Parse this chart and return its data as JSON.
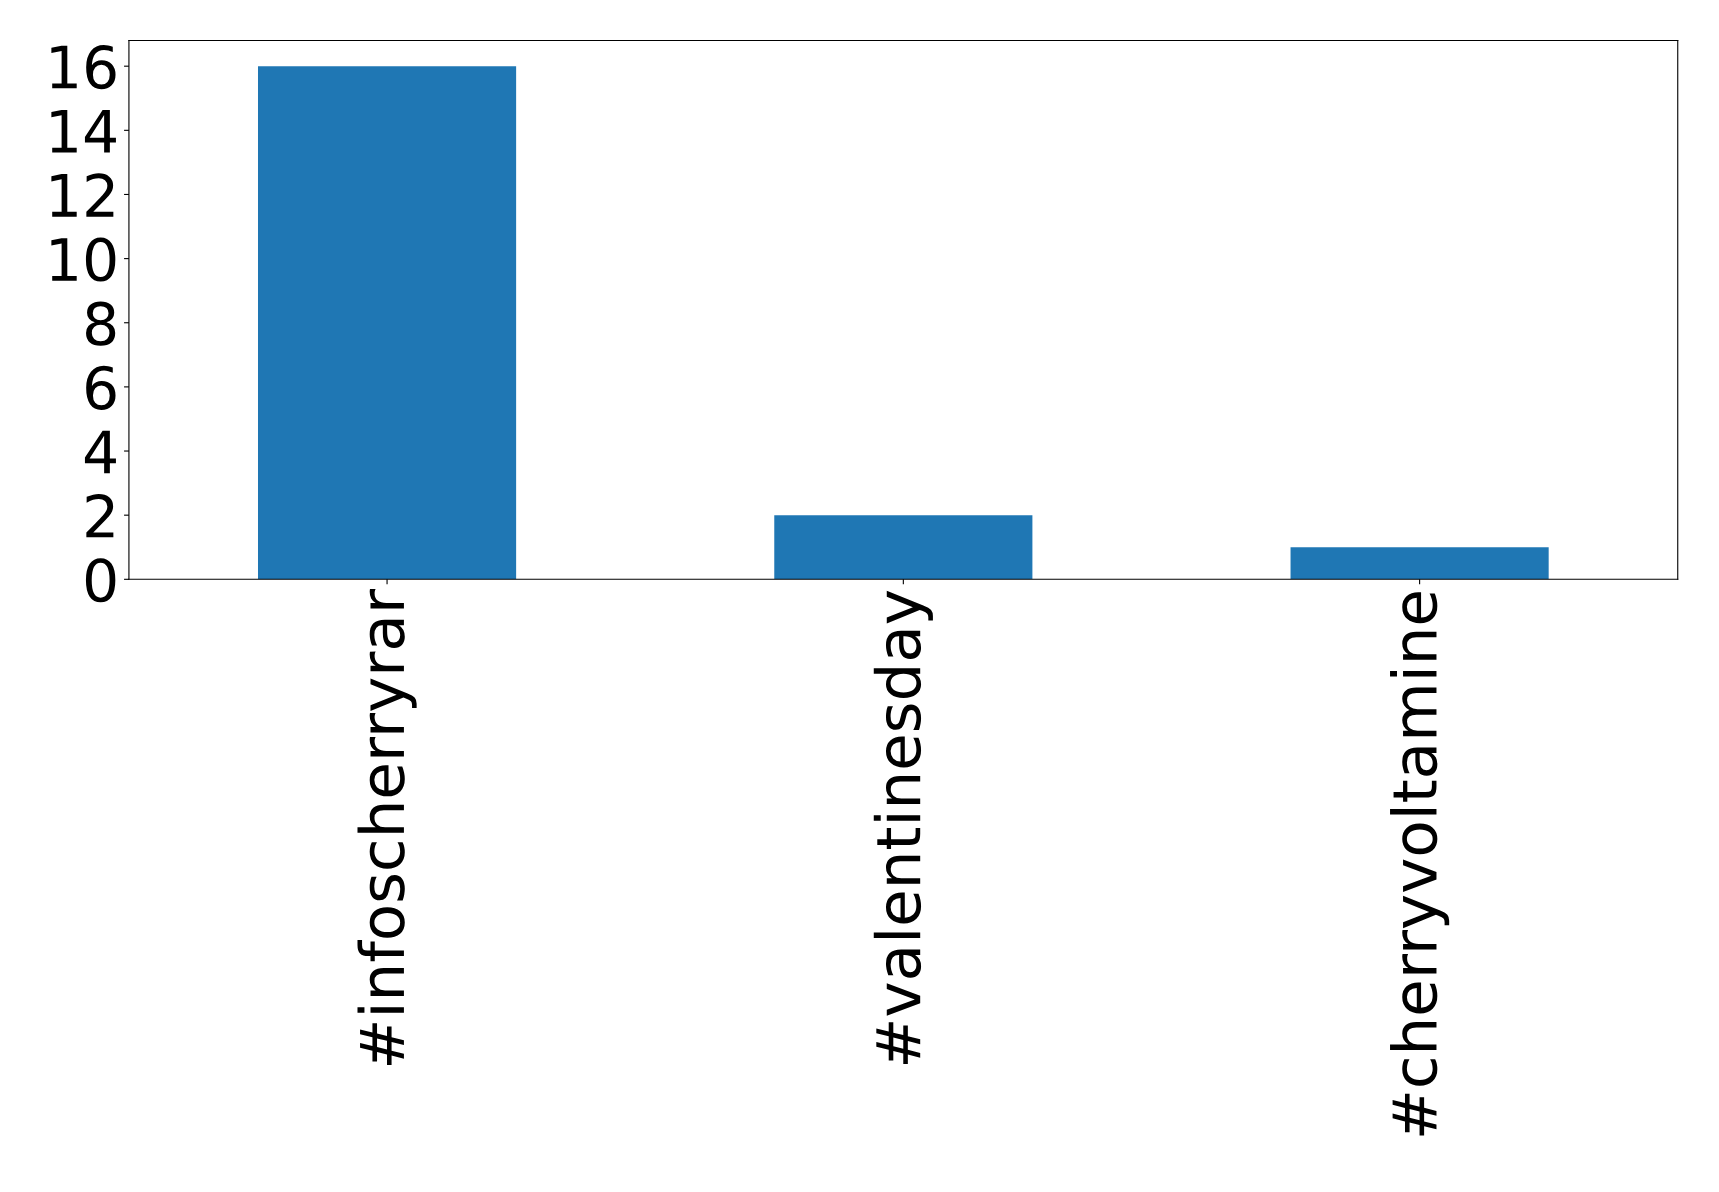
{
  "chart_data": {
    "type": "bar",
    "categories": [
      "#infoscherryrar",
      "#valentinesday",
      "#cherryvoltamine"
    ],
    "values": [
      16,
      2,
      1
    ],
    "color": "#1f77b4",
    "ylim": [
      0,
      16.8
    ],
    "yticks": [
      0,
      2,
      4,
      6,
      8,
      10,
      12,
      14,
      16
    ],
    "grid": false
  }
}
